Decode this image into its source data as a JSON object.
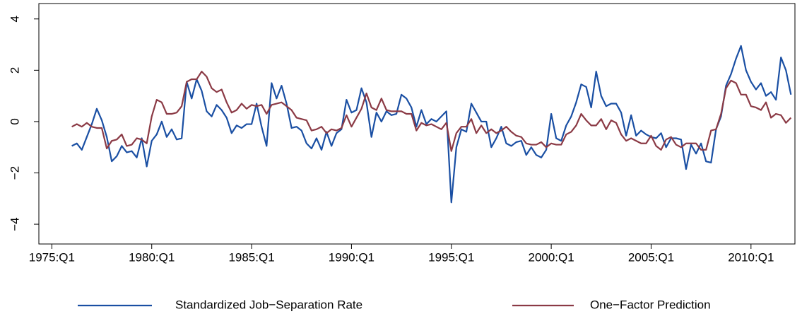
{
  "chart_data": {
    "type": "line",
    "x": [
      1976,
      1976.25,
      1976.5,
      1976.75,
      1977,
      1977.25,
      1977.5,
      1977.75,
      1978,
      1978.25,
      1978.5,
      1978.75,
      1979,
      1979.25,
      1979.5,
      1979.75,
      1980,
      1980.25,
      1980.5,
      1980.75,
      1981,
      1981.25,
      1981.5,
      1981.75,
      1982,
      1982.25,
      1982.5,
      1982.75,
      1983,
      1983.25,
      1983.5,
      1983.75,
      1984,
      1984.25,
      1984.5,
      1984.75,
      1985,
      1985.25,
      1985.5,
      1985.75,
      1986,
      1986.25,
      1986.5,
      1986.75,
      1987,
      1987.25,
      1987.5,
      1987.75,
      1988,
      1988.25,
      1988.5,
      1988.75,
      1989,
      1989.25,
      1989.5,
      1989.75,
      1990,
      1990.25,
      1990.5,
      1990.75,
      1991,
      1991.25,
      1991.5,
      1991.75,
      1992,
      1992.25,
      1992.5,
      1992.75,
      1993,
      1993.25,
      1993.5,
      1993.75,
      1994,
      1994.25,
      1994.5,
      1994.75,
      1995,
      1995.25,
      1995.5,
      1995.75,
      1996,
      1996.25,
      1996.5,
      1996.75,
      1997,
      1997.25,
      1997.5,
      1997.75,
      1998,
      1998.25,
      1998.5,
      1998.75,
      1999,
      1999.25,
      1999.5,
      1999.75,
      2000,
      2000.25,
      2000.5,
      2000.75,
      2001,
      2001.25,
      2001.5,
      2001.75,
      2002,
      2002.25,
      2002.5,
      2002.75,
      2003,
      2003.25,
      2003.5,
      2003.75,
      2004,
      2004.25,
      2004.5,
      2004.75,
      2005,
      2005.25,
      2005.5,
      2005.75,
      2006,
      2006.25,
      2006.5,
      2006.75,
      2007,
      2007.25,
      2007.5,
      2007.75,
      2008,
      2008.25,
      2008.5,
      2008.75,
      2009,
      2009.25,
      2009.5,
      2009.75,
      2010,
      2010.25,
      2010.5,
      2010.75,
      2011,
      2011.25,
      2011.5,
      2011.75,
      2012
    ],
    "series": [
      {
        "name": "Standardized Job−Separation Rate",
        "color": "#1a4fa3",
        "values": [
          -0.95,
          -0.85,
          -1.1,
          -0.6,
          -0.1,
          0.5,
          0.05,
          -0.6,
          -1.55,
          -1.35,
          -0.95,
          -1.2,
          -1.15,
          -1.4,
          -0.65,
          -1.75,
          -0.75,
          -0.5,
          0.0,
          -0.6,
          -0.3,
          -0.7,
          -0.65,
          1.55,
          0.9,
          1.65,
          1.2,
          0.4,
          0.2,
          0.65,
          0.45,
          0.15,
          -0.45,
          -0.15,
          -0.25,
          -0.1,
          -0.1,
          0.7,
          -0.2,
          -0.95,
          1.5,
          0.9,
          1.4,
          0.7,
          -0.25,
          -0.2,
          -0.35,
          -0.85,
          -1.05,
          -0.65,
          -1.1,
          -0.4,
          -0.95,
          -0.45,
          -0.3,
          0.85,
          0.35,
          0.45,
          1.3,
          0.75,
          -0.6,
          0.35,
          0.0,
          0.4,
          0.25,
          0.3,
          1.05,
          0.9,
          0.55,
          -0.2,
          0.45,
          -0.1,
          0.1,
          0.0,
          0.2,
          0.4,
          -3.15,
          -1.0,
          -0.3,
          -0.4,
          0.7,
          0.35,
          0.0,
          0.0,
          -1.0,
          -0.65,
          -0.2,
          -0.85,
          -0.95,
          -0.8,
          -0.75,
          -1.3,
          -1.0,
          -1.3,
          -1.4,
          -1.1,
          0.3,
          -0.65,
          -0.75,
          -0.15,
          0.2,
          0.75,
          1.45,
          1.35,
          0.55,
          1.95,
          1.0,
          0.6,
          0.7,
          0.7,
          0.35,
          -0.55,
          0.25,
          -0.55,
          -0.35,
          -0.5,
          -0.6,
          -0.65,
          -0.45,
          -1.0,
          -0.65,
          -0.65,
          -0.7,
          -1.85,
          -0.9,
          -1.25,
          -0.85,
          -1.55,
          -1.6,
          -0.3,
          0.2,
          1.4,
          1.85,
          2.45,
          2.95,
          2.0,
          1.55,
          1.25,
          1.5,
          1.0,
          1.15,
          0.85,
          2.5,
          2.0,
          1.05
        ]
      },
      {
        "name": "One−Factor Prediction",
        "color": "#8b3a45",
        "values": [
          -0.2,
          -0.1,
          -0.2,
          -0.05,
          -0.2,
          -0.25,
          -0.25,
          -1.05,
          -0.75,
          -0.7,
          -0.5,
          -0.95,
          -0.9,
          -0.65,
          -0.7,
          -0.85,
          0.2,
          0.85,
          0.75,
          0.3,
          0.3,
          0.35,
          0.6,
          1.55,
          1.65,
          1.65,
          1.95,
          1.75,
          1.3,
          1.15,
          1.25,
          0.75,
          0.35,
          0.45,
          0.7,
          0.5,
          0.65,
          0.6,
          0.65,
          0.3,
          0.65,
          0.7,
          0.75,
          0.6,
          0.45,
          0.15,
          0.1,
          0.05,
          -0.35,
          -0.3,
          -0.2,
          -0.45,
          -0.3,
          -0.35,
          -0.25,
          0.25,
          -0.2,
          0.15,
          0.5,
          1.1,
          0.55,
          0.45,
          0.9,
          0.45,
          0.4,
          0.4,
          0.4,
          0.3,
          0.3,
          -0.35,
          -0.05,
          -0.15,
          -0.1,
          -0.2,
          -0.3,
          -0.05,
          -1.15,
          -0.45,
          -0.2,
          -0.2,
          0.1,
          -0.45,
          -0.15,
          -0.45,
          -0.3,
          -0.45,
          -0.35,
          -0.2,
          -0.4,
          -0.55,
          -0.6,
          -0.85,
          -0.9,
          -0.9,
          -0.8,
          -1.0,
          -0.85,
          -0.9,
          -0.9,
          -0.5,
          -0.4,
          -0.15,
          0.3,
          0.05,
          -0.15,
          -0.15,
          0.1,
          -0.3,
          0.05,
          -0.05,
          -0.5,
          -0.75,
          -0.65,
          -0.75,
          -0.85,
          -0.85,
          -0.55,
          -0.95,
          -1.1,
          -0.7,
          -0.6,
          -0.9,
          -1.0,
          -0.85,
          -0.85,
          -0.85,
          -1.1,
          -1.1,
          -0.35,
          -0.3,
          0.3,
          1.3,
          1.6,
          1.5,
          1.05,
          1.05,
          0.6,
          0.55,
          0.45,
          0.75,
          0.15,
          0.3,
          0.25,
          -0.05,
          0.15
        ]
      }
    ],
    "xlim": [
      1974.35,
      2012.2
    ],
    "xticks": [
      {
        "value": 1975,
        "label": "1975:Q1"
      },
      {
        "value": 1980,
        "label": "1980:Q1"
      },
      {
        "value": 1985,
        "label": "1985:Q1"
      },
      {
        "value": 1990,
        "label": "1990:Q1"
      },
      {
        "value": 1995,
        "label": "1995:Q1"
      },
      {
        "value": 2000,
        "label": "2000:Q1"
      },
      {
        "value": 2005,
        "label": "2005:Q1"
      },
      {
        "value": 2010,
        "label": "2010:Q1"
      }
    ],
    "ylim": [
      -4.77,
      4.6
    ],
    "yticks": [
      {
        "value": -4,
        "label": "−4"
      },
      {
        "value": -2,
        "label": "−2"
      },
      0,
      2,
      4
    ],
    "legend": "bottom"
  }
}
